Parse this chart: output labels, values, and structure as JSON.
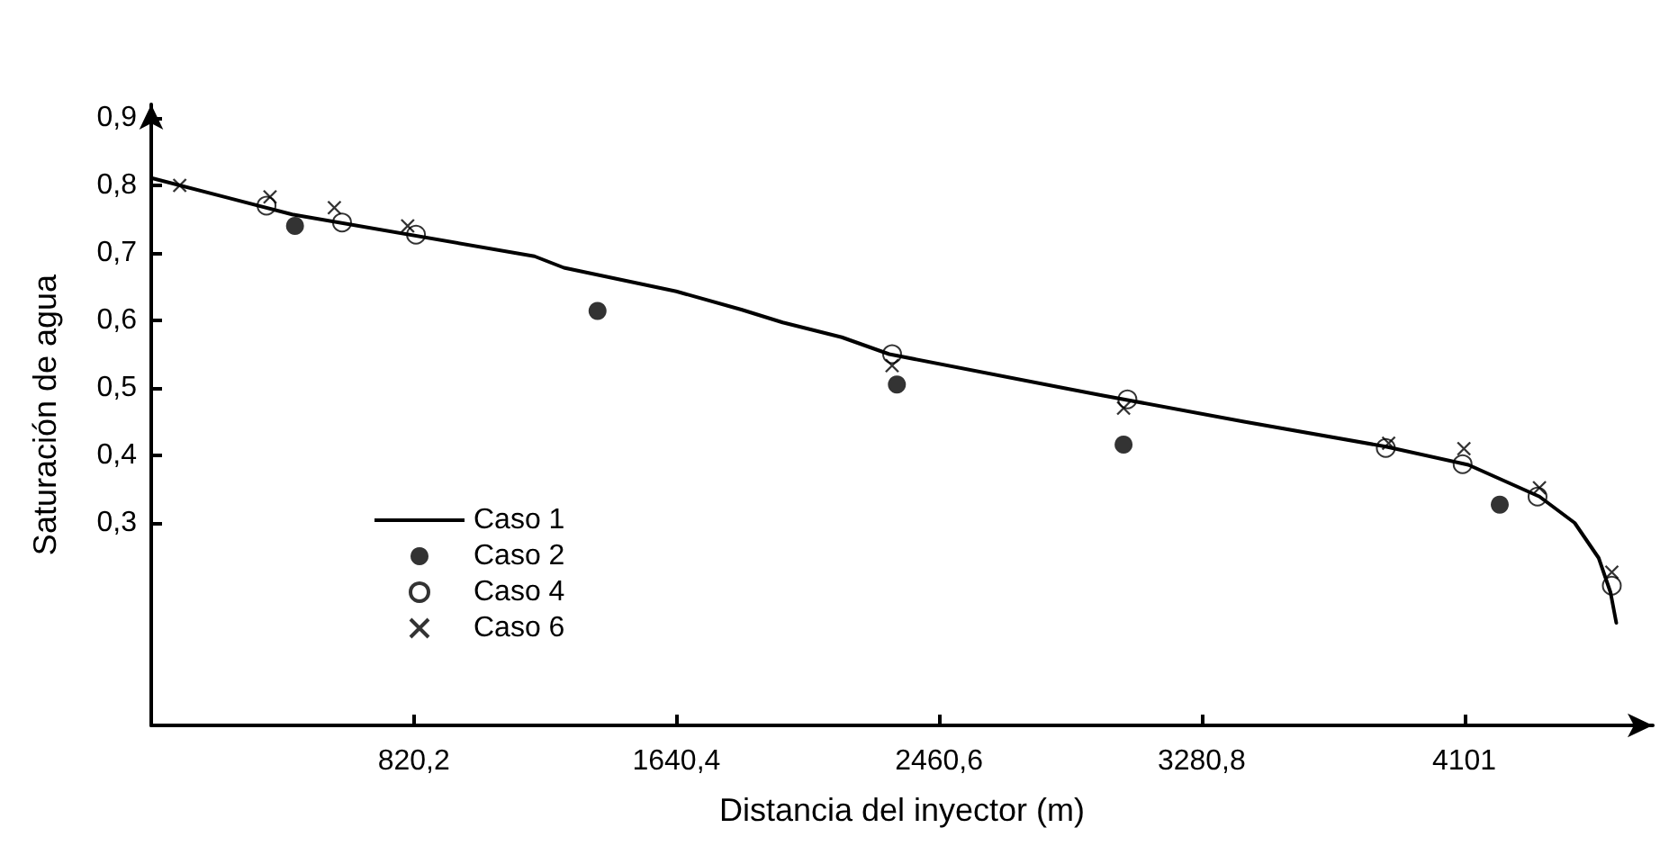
{
  "chart_data": {
    "type": "scatter",
    "xlabel": "Distancia del inyector (m)",
    "ylabel": "Saturación de agua",
    "xlim": [
      0,
      4690
    ],
    "ylim": [
      0,
      0.92
    ],
    "xticks": [
      {
        "value": 820.2,
        "label": "820,2"
      },
      {
        "value": 1640.4,
        "label": "1640,4"
      },
      {
        "value": 2460.6,
        "label": "2460,6"
      },
      {
        "value": 3280.8,
        "label": "3280,8"
      },
      {
        "value": 4101,
        "label": "4101"
      }
    ],
    "yticks": [
      {
        "value": 0.3,
        "label": "0,3"
      },
      {
        "value": 0.4,
        "label": "0,4"
      },
      {
        "value": 0.5,
        "label": "0,5"
      },
      {
        "value": 0.6,
        "label": "0,6"
      },
      {
        "value": 0.7,
        "label": "0,7"
      },
      {
        "value": 0.8,
        "label": "0,8"
      },
      {
        "value": 0.9,
        "label": "0,9"
      }
    ],
    "grid": false,
    "legend": "bottom left",
    "series": [
      {
        "name": "Caso 1",
        "type": "line",
        "color": "#000000",
        "marker": "none",
        "line_style": "solid",
        "x": [
          0,
          440,
          1197,
          1289,
          1640,
          1843,
          1972,
          2157,
          2305,
          2859,
          2969,
          3413,
          3856,
          4114,
          4336,
          4446,
          4521,
          4558,
          4576
        ],
        "values": [
          0.811,
          0.757,
          0.695,
          0.678,
          0.643,
          0.616,
          0.597,
          0.575,
          0.55,
          0.499,
          0.489,
          0.45,
          0.413,
          0.386,
          0.339,
          0.3,
          0.248,
          0.197,
          0.152
        ]
      },
      {
        "name": "Caso 2",
        "color": "#000000",
        "marker": "circle",
        "x": [
          449,
          1394,
          2329,
          3037,
          4212
        ],
        "values": [
          0.74,
          0.614,
          0.505,
          0.416,
          0.327
        ]
      },
      {
        "name": "Caso 4",
        "color": "#000000",
        "marker": "circle",
        "x": [
          360,
          596,
          827,
          2314,
          3049,
          3856,
          4096,
          4330,
          4562
        ],
        "values": [
          0.77,
          0.745,
          0.727,
          0.55,
          0.483,
          0.411,
          0.387,
          0.339,
          0.207
        ]
      },
      {
        "name": "Caso 6",
        "color": "#000000",
        "marker": "cross",
        "x": [
          89,
          371,
          572,
          801,
          2314,
          3037,
          3865,
          4100,
          4336,
          4562
        ],
        "values": [
          0.8,
          0.783,
          0.767,
          0.74,
          0.533,
          0.47,
          0.418,
          0.41,
          0.352,
          0.227
        ]
      }
    ]
  }
}
